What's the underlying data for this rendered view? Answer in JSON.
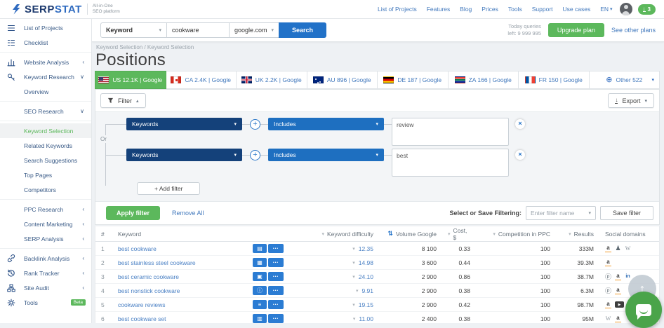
{
  "header": {
    "logo_primary": "SERP",
    "logo_secondary": "STAT",
    "tagline1": "All-in-One",
    "tagline2": "SEO platform",
    "nav_links": [
      "List of Projects",
      "Features",
      "Blog",
      "Prices",
      "Tools",
      "Support",
      "Use cases"
    ],
    "language": "EN",
    "credits_count": "3"
  },
  "searchbar": {
    "type_value": "Keyword",
    "query_value": "cookware",
    "engine_value": "google.com",
    "search_label": "Search",
    "quota_line1": "Today queries",
    "quota_line2": "left: 9 999 995",
    "upgrade_label": "Upgrade plan",
    "other_plans_label": "See other plans"
  },
  "sidebar": {
    "items": [
      {
        "label": "List of Projects",
        "icon": "menu"
      },
      {
        "label": "Checklist",
        "icon": "checklist"
      },
      {
        "label": "Website Analysis",
        "icon": "bar-chart",
        "chevron": "collapsed",
        "divider_above": true
      },
      {
        "label": "Keyword Research",
        "icon": "key",
        "chevron": "expanded"
      },
      {
        "label": "Overview",
        "indent": true
      },
      {
        "label": "SEO Research",
        "indent": true,
        "chevron": "expanded",
        "divider_above": true
      },
      {
        "label": "Keyword Selection",
        "indent": true,
        "active": true,
        "divider_above": true
      },
      {
        "label": "Related Keywords",
        "indent": true
      },
      {
        "label": "Search Suggestions",
        "indent": true
      },
      {
        "label": "Top Pages",
        "indent": true
      },
      {
        "label": "Competitors",
        "indent": true
      },
      {
        "label": "PPC Research",
        "indent": true,
        "chevron": "collapsed",
        "divider_above": true
      },
      {
        "label": "Content Marketing",
        "indent": true,
        "chevron": "collapsed"
      },
      {
        "label": "SERP Analysis",
        "indent": true,
        "chevron": "collapsed"
      },
      {
        "label": "Backlink Analysis",
        "icon": "link",
        "chevron": "collapsed",
        "divider_above": true
      },
      {
        "label": "Rank Tracker",
        "icon": "history",
        "chevron": "collapsed"
      },
      {
        "label": "Site Audit",
        "icon": "sitemap",
        "chevron": "collapsed"
      },
      {
        "label": "Tools",
        "icon": "gear",
        "badge": "Beta"
      }
    ]
  },
  "page": {
    "breadcrumb": "Keyword Selection / Keyword Selection",
    "title": "Positions"
  },
  "region_tabs": [
    {
      "flag": "us",
      "label": "US 12.1K | Google",
      "active": true
    },
    {
      "flag": "ca",
      "label": "CA 2.4K | Google"
    },
    {
      "flag": "uk",
      "label": "UK 2.2K | Google"
    },
    {
      "flag": "au",
      "label": "AU 896 | Google"
    },
    {
      "flag": "de",
      "label": "DE 187 | Google"
    },
    {
      "flag": "za",
      "label": "ZA 166 | Google"
    },
    {
      "flag": "fr",
      "label": "FR 150 | Google"
    },
    {
      "flag": "globe",
      "label": "Other 522",
      "dropdown": true
    }
  ],
  "filter": {
    "toggle_label": "Filter",
    "export_label": "Export",
    "or_label": "Or",
    "rows": [
      {
        "field": "Keywords",
        "condition": "Includes",
        "value": "review"
      },
      {
        "field": "Keywords",
        "condition": "Includes",
        "value": "best"
      }
    ],
    "add_filter_label": "+ Add filter",
    "apply_label": "Apply filter",
    "remove_all_label": "Remove All",
    "save_label": "Select or Save Filtering:",
    "name_placeholder": "Enter filter name",
    "save_button_label": "Save filter"
  },
  "table": {
    "columns": [
      {
        "key": "num",
        "label": "#",
        "align": "left"
      },
      {
        "key": "keyword",
        "label": "Keyword",
        "align": "left"
      },
      {
        "key": "difficulty",
        "label": "Keyword difficulty",
        "align": "right",
        "icon": "filter"
      },
      {
        "key": "volume",
        "label": "Volume Google",
        "align": "right",
        "icon": "sort"
      },
      {
        "key": "cost",
        "label": "Cost, $",
        "align": "right",
        "icon": "filter"
      },
      {
        "key": "competition",
        "label": "Competition in PPC",
        "align": "right",
        "icon": "filter"
      },
      {
        "key": "results",
        "label": "Results",
        "align": "right",
        "icon": "filter"
      },
      {
        "key": "social",
        "label": "Social domains",
        "align": "left"
      }
    ],
    "rows": [
      {
        "num": "1",
        "keyword": "best cookware",
        "serp_feature": "snippet",
        "difficulty": "12.35",
        "volume": "8 100",
        "cost": "0.33",
        "competition": "100",
        "results": "333M",
        "social": [
          "amazon",
          "reddit",
          "wikipedia"
        ]
      },
      {
        "num": "2",
        "keyword": "best stainless steel cookware",
        "serp_feature": "images",
        "difficulty": "14.98",
        "volume": "3 600",
        "cost": "0.44",
        "competition": "100",
        "results": "39.3M",
        "social": [
          "amazon"
        ]
      },
      {
        "num": "3",
        "keyword": "best ceramic cookware",
        "serp_feature": "monitor",
        "difficulty": "24.10",
        "volume": "2 900",
        "cost": "0.86",
        "competition": "100",
        "results": "38.7M",
        "social": [
          "pinterest",
          "amazon",
          "linkedin"
        ]
      },
      {
        "num": "4",
        "keyword": "best nonstick cookware",
        "serp_feature": "info",
        "difficulty": "9.91",
        "volume": "2 900",
        "cost": "0.38",
        "competition": "100",
        "results": "6.3M",
        "social": [
          "pinterest",
          "amazon"
        ]
      },
      {
        "num": "5",
        "keyword": "cookware reviews",
        "serp_feature": "list",
        "difficulty": "19.15",
        "volume": "2 900",
        "cost": "0.42",
        "competition": "100",
        "results": "98.7M",
        "social": [
          "amazon",
          "youtube"
        ]
      },
      {
        "num": "6",
        "keyword": "best cookware set",
        "serp_feature": "cart",
        "difficulty": "11.00",
        "volume": "2 400",
        "cost": "0.38",
        "competition": "100",
        "results": "95M",
        "social": [
          "wikipedia",
          "amazon"
        ]
      }
    ],
    "icons": {
      "serp_glyphs": {
        "snippet": "▤",
        "images": "▦",
        "monitor": "▣",
        "info": "ⓘ",
        "list": "≡",
        "cart": "▥"
      },
      "social_glyphs": {
        "amazon": "a",
        "reddit": "♟",
        "wikipedia": "W",
        "pinterest": "ⓟ",
        "linkedin": "in",
        "youtube": "▶"
      },
      "header_filter_glyph": "▾",
      "header_sort_glyph": "⇅",
      "row_caret_glyph": "▾",
      "ellipsis_glyph": "•••"
    }
  },
  "floating": {
    "scroll_top_glyph": "↑"
  },
  "colors": {
    "green": "#5cb85c",
    "blue": "#2272c8",
    "navy": "#14417a",
    "link_blue": "#4279bd"
  }
}
